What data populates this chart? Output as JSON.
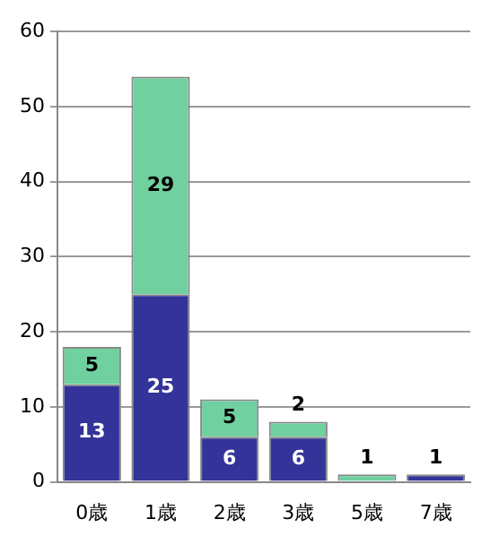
{
  "chart_data": {
    "type": "bar",
    "stacked": true,
    "categories": [
      "0歳",
      "1歳",
      "2歳",
      "3歳",
      "5歳",
      "7歳"
    ],
    "series": [
      {
        "color": "#333399",
        "values": [
          13,
          25,
          6,
          6,
          null,
          1
        ]
      },
      {
        "color": "#70d0a0",
        "values": [
          5,
          29,
          5,
          2,
          1,
          null
        ]
      }
    ],
    "ylim": [
      0,
      60
    ],
    "yticks": [
      0,
      10,
      20,
      30,
      40,
      50,
      60
    ],
    "grid": "y",
    "data_labels": true,
    "legend": false
  }
}
